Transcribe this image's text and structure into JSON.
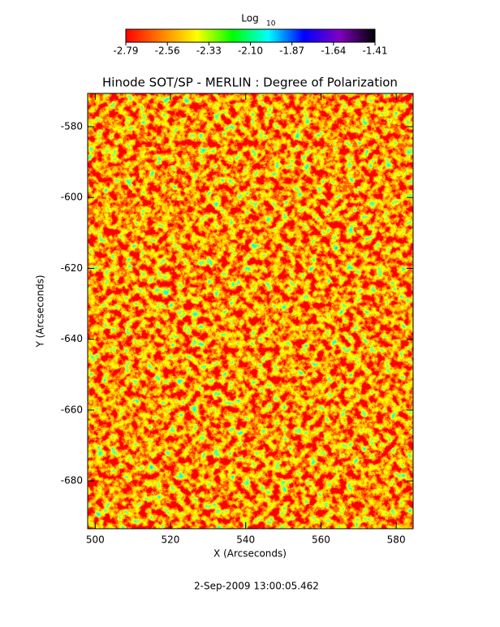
{
  "chart_data": {
    "type": "heatmap",
    "title": "Hinode SOT/SP - MERLIN : Degree of Polarization",
    "xlabel": "X (Arcseconds)",
    "ylabel": "Y (Arcseconds)",
    "footer": "2-Sep-2009 13:00:05.462",
    "colorbar": {
      "title": "Log",
      "title_subscript": "10",
      "lim": [
        -2.79,
        -1.41
      ],
      "ticks": [
        -2.79,
        -2.56,
        -2.33,
        {
          "value": -2.1,
          "label": "-2.10"
        },
        -1.87,
        -1.64,
        -1.41
      ],
      "colors": [
        "#ff0000",
        "#ff8000",
        "#ffff00",
        "#00ff00",
        "#00ffff",
        "#0000ff",
        "#8000c0",
        "#000000"
      ]
    },
    "xlim": [
      498,
      584.5
    ],
    "xticks": [
      500,
      520,
      540,
      560,
      580
    ],
    "ylim": [
      -693.5,
      -570.6
    ],
    "yticks": [
      -580,
      -600,
      -620,
      -640,
      -660,
      -680
    ]
  }
}
